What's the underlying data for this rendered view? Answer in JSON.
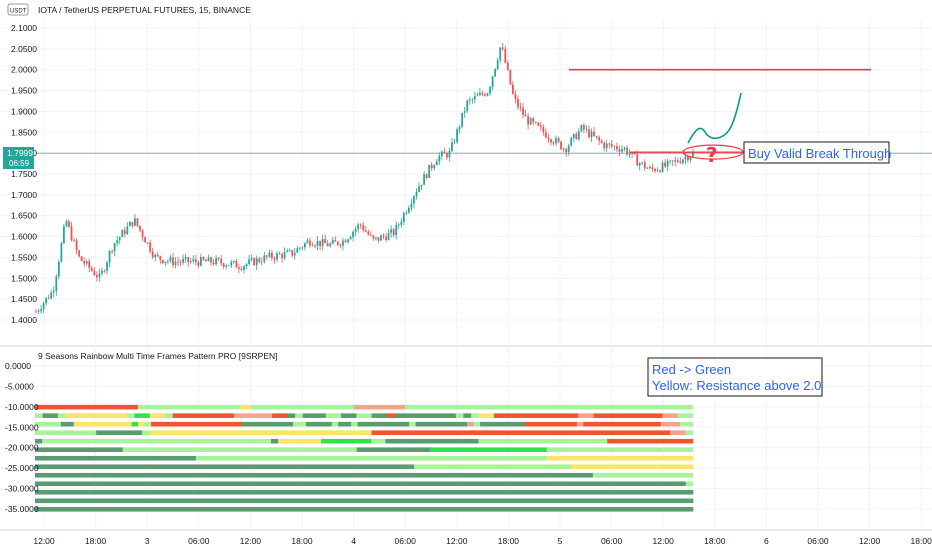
{
  "chart_data": [
    {
      "type": "candlestick",
      "title": "IOTA / TetherUS PERPETUAL FUTURES, 15, BINANCE",
      "currency_badge": "USDT",
      "y_ticks": [
        "2.1000",
        "2.0500",
        "2.0000",
        "1.9500",
        "1.9000",
        "1.8500",
        "1.8000",
        "1.7500",
        "1.7000",
        "1.6500",
        "1.6000",
        "1.5500",
        "1.5000",
        "1.4500",
        "1.4000"
      ],
      "ylim": [
        1.39,
        2.11
      ],
      "x_ticks": [
        "12:00",
        "18:00",
        "3",
        "06:00",
        "12:00",
        "18:00",
        "4",
        "06:00",
        "12:00",
        "18:00",
        "5",
        "06:00",
        "12:00",
        "18:00",
        "6",
        "06:00",
        "12:00",
        "18:00"
      ],
      "last_price": "1.7999",
      "countdown": "06:59",
      "price_path": [
        [
          0,
          1.42
        ],
        [
          0.02,
          1.47
        ],
        [
          0.035,
          1.64
        ],
        [
          0.05,
          1.55
        ],
        [
          0.075,
          1.5
        ],
        [
          0.09,
          1.58
        ],
        [
          0.115,
          1.64
        ],
        [
          0.14,
          1.55
        ],
        [
          0.16,
          1.54
        ],
        [
          0.18,
          1.54
        ],
        [
          0.21,
          1.54
        ],
        [
          0.24,
          1.53
        ],
        [
          0.27,
          1.55
        ],
        [
          0.3,
          1.56
        ],
        [
          0.32,
          1.59
        ],
        [
          0.345,
          1.58
        ],
        [
          0.36,
          1.59
        ],
        [
          0.38,
          1.63
        ],
        [
          0.395,
          1.59
        ],
        [
          0.42,
          1.61
        ],
        [
          0.445,
          1.71
        ],
        [
          0.47,
          1.79
        ],
        [
          0.485,
          1.8
        ],
        [
          0.505,
          1.92
        ],
        [
          0.53,
          1.95
        ],
        [
          0.545,
          2.06
        ],
        [
          0.56,
          1.93
        ],
        [
          0.575,
          1.88
        ],
        [
          0.595,
          1.85
        ],
        [
          0.62,
          1.81
        ],
        [
          0.64,
          1.86
        ],
        [
          0.665,
          1.82
        ],
        [
          0.69,
          1.81
        ],
        [
          0.705,
          1.78
        ],
        [
          0.72,
          1.76
        ],
        [
          0.74,
          1.77
        ],
        [
          0.76,
          1.79
        ],
        [
          0.77,
          1.8
        ]
      ],
      "annotations": {
        "resistance_price": 2.0,
        "breakout_level_price": 1.8,
        "label": "Buy Valid Break Through",
        "question_mark": "?"
      }
    },
    {
      "type": "heatmap",
      "title": "9 Seasons Rainbow Multi Time Frames Pattern PRO [9SRPEN]",
      "y_ticks": [
        "0.0000",
        "-5.0000",
        "-10.0000",
        "-15.0000",
        "-20.0000",
        "-25.0000",
        "-30.0000",
        "-35.0000"
      ],
      "ylim": [
        -38,
        1
      ],
      "colors": {
        "D": "#5b9b72",
        "L": "#a8f29c",
        "Y": "#fbe468",
        "R": "#f0552f",
        "P": "#f5a391",
        "G": "#35e14a"
      },
      "rows": [
        "RRRRRRRRRRLLLLLLLLLLYLLLLLLLLLLPPPPPLLLLLLLLLLLLLLLLLLLLLLLLLLLL",
        "LDDLYYYYYYYYLGGYYLRRRRRRRRPPPPPRRDLDDDLLDDLLDDRDDDDDDDDLDLYYRRRRRRRRRRRPPRRRRRRRRRPPLL",
        "LLLLDDYYYYYYYYYGYLRRRRRRRRRRRRRRDDDDDDDDLLDDDDLDDLDDDDDDDDLDDDDDDDDPLDDDDDDDRRRRRRRRPRRRRRRRRRRRRPPPLL",
        "LLLLLLLLDDDDDDLYYYYYYYYYYYYYYYYYYYYYYYYYYYYYRRRRRRRRRRRRRRRRRRRRRRRRRRRRRRRRRRRRRRRPPL",
        "DLLLLLLLLLLLLLLLLLLLLLLLLLLLLLLLLDYYYYYYGGGGGGGLLDDDDDDDDDDDDDLLLLLLLLLLLLLLLLLLRRRRRRRRRRRR",
        "DDDDDDDDDDDDLLLLLLLLLLLLLLLLLLLLLLLLLLLLLLLLDDDDDDDDDDGGGGGGGGGGGGGGGGLLLLLLLLLLLLLLLLLLLL",
        "DDDDDDDDDDDDDDDDDDDDDDLLLLLLLLLLLLLLLLLLLLLLLLLLLLLLLLLLLLLLLLLLLLLLLLYYYYYYYYYYYYYYYYYYYY",
        "DDDDDDDDDDDDDDDDDDDDDDDDDDDDDDDDDDDDDDDDDDDDDDDDDDDDDLLLLLLLLLLLLLLLLLLLLLLYYYYYYYYYYYYYYYYY",
        "DDDDDDDDDDDDDDDDDDDDDDDDDDDDDDDDDDDDDDDDDDDDDDDDDDDDDDDDDDDDDDDDDDDDDDDDDDDDDDLLLLLLLLLLLLLL",
        "DDDDDDDDDDDDDDDDDDDDDDDDDDDDDDDDDDDDDDDDDDDDDDDDDDDDDDDDDDDDDDDDDDDDDDDDDDDDDDDDDDDDDDDDDDL",
        "DDDDDDDDDDDDDDDDDDDDDDDDDDDDDDDDDDDDDDDDDDDDDDDDDDDDDDDDDDDDDDDDDDDDDDDDDDDDDDDDDDDDDDDDDDD",
        "DDDDDDDDDDDDDDDDDDDDDDDDDDDDDDDDDDDDDDDDDDDDDDDDDDDDDDDDDDDDDDDDDDDDDDDDDDDDDDDDDDDDDDDDDDD",
        "DDDDDDDDDDDDDDDDDDDDDDDDDDDDDDDDDDDDDDDDDDDDDDDDDDDDDDDDDDDDDDDDDDDDDDDDDDDDDDDDDDDDDDDDDDD"
      ],
      "note_lines": [
        "Red -> Green",
        "Yellow: Resistance above 2.0"
      ]
    }
  ],
  "colors": {
    "up": "#26a69a",
    "down": "#ef5350",
    "annotation_red": "#f23645",
    "annotation_green": "#089981",
    "label_blue": "#2962ff",
    "crosshair": "#26a69a",
    "grid": "#f0f3fa"
  }
}
